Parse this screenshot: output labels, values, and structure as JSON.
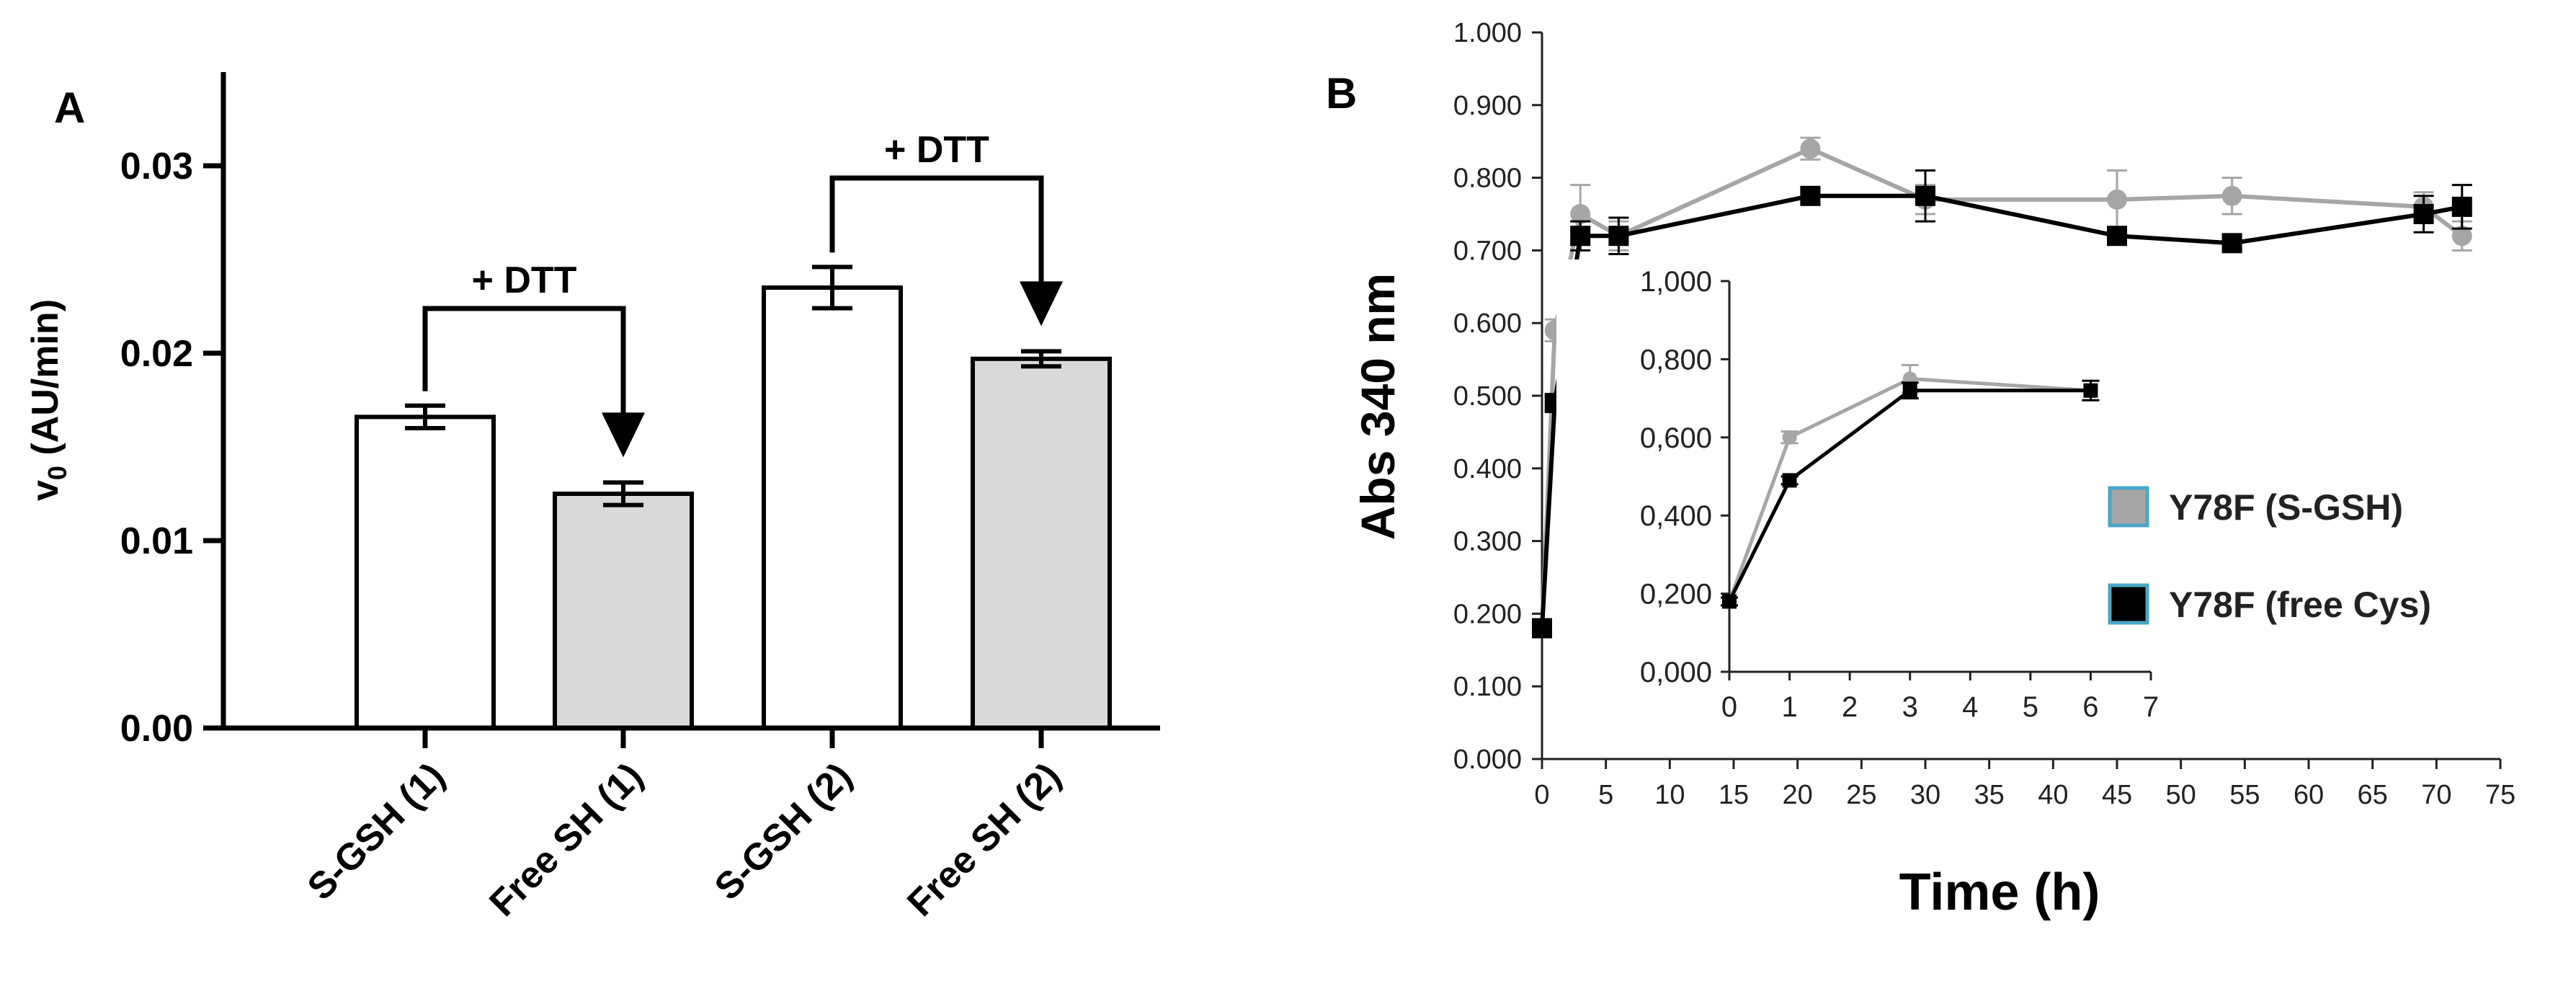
{
  "chart_data": [
    {
      "panel": "A",
      "type": "bar",
      "ylabel": "v0 (AU/min)",
      "ylabel_base": "v",
      "ylabel_sub": "0",
      "ylabel_rest": " (AU/min)",
      "ylim": [
        0,
        0.035
      ],
      "yticks": [
        0.0,
        0.01,
        0.02,
        0.03
      ],
      "yticklabels": [
        "0.00",
        "0.01",
        "0.02",
        "0.03"
      ],
      "categories": [
        "S-GSH (1)",
        "Free SH (1)",
        "S-GSH (2)",
        "Free SH (2)"
      ],
      "values": [
        0.0166,
        0.0125,
        0.0235,
        0.0197
      ],
      "errors": [
        0.0006,
        0.0006,
        0.0011,
        0.0004
      ],
      "bar_colors": [
        "#ffffff",
        "#d9d9d9",
        "#ffffff",
        "#d9d9d9"
      ],
      "annotations": [
        {
          "text": "+ DTT",
          "from": 0,
          "to": 1
        },
        {
          "text": "+ DTT",
          "from": 2,
          "to": 3
        }
      ]
    },
    {
      "panel": "B",
      "type": "line",
      "xlabel": "Time (h)",
      "ylabel": "Abs  340 nm",
      "xlim": [
        0,
        75
      ],
      "ylim": [
        0,
        1
      ],
      "xticks": [
        0,
        5,
        10,
        15,
        20,
        25,
        30,
        35,
        40,
        45,
        50,
        55,
        60,
        65,
        70,
        75
      ],
      "yticks": [
        0.0,
        0.1,
        0.2,
        0.3,
        0.4,
        0.5,
        0.6,
        0.7,
        0.8,
        0.9,
        1.0
      ],
      "yticklabels": [
        "0.000",
        "0.100",
        "0.200",
        "0.300",
        "0.400",
        "0.500",
        "0.600",
        "0.700",
        "0.800",
        "0.900",
        "1.000"
      ],
      "series": [
        {
          "name": "Y78F (S-GSH)",
          "color": "#a6a6a6",
          "marker": "circle",
          "x": [
            0,
            1,
            3,
            6,
            21,
            30,
            45,
            54,
            69,
            72
          ],
          "y": [
            0.18,
            0.59,
            0.75,
            0.72,
            0.84,
            0.77,
            0.77,
            0.775,
            0.76,
            0.72
          ],
          "err": [
            0.01,
            0.015,
            0.04,
            0.02,
            0.015,
            0.02,
            0.04,
            0.025,
            0.02,
            0.02
          ]
        },
        {
          "name": "Y78F (free Cys)",
          "color": "#000000",
          "marker": "square",
          "x": [
            0,
            1,
            3,
            6,
            21,
            30,
            45,
            54,
            69,
            72
          ],
          "y": [
            0.18,
            0.49,
            0.72,
            0.72,
            0.775,
            0.775,
            0.72,
            0.71,
            0.75,
            0.76
          ],
          "err": [
            0.01,
            0.01,
            0.02,
            0.025,
            0.01,
            0.035,
            0.01,
            0.01,
            0.025,
            0.03
          ]
        }
      ],
      "legend_placement": "right",
      "inset": {
        "xlim": [
          0,
          7
        ],
        "ylim": [
          0,
          1
        ],
        "xticks": [
          0,
          1,
          2,
          3,
          4,
          5,
          6,
          7
        ],
        "yticks": [
          0.0,
          0.2,
          0.4,
          0.6,
          0.8,
          1.0
        ],
        "yticklabels": [
          "0,000",
          "0,200",
          "0,400",
          "0,600",
          "0,800",
          "1,000"
        ],
        "series": [
          {
            "name": "Y78F (S-GSH)",
            "color": "#a6a6a6",
            "x": [
              0,
              1,
              3,
              6
            ],
            "y": [
              0.18,
              0.6,
              0.75,
              0.72
            ],
            "err": [
              0.01,
              0.015,
              0.035,
              0.025
            ]
          },
          {
            "name": "Y78F (free Cys)",
            "color": "#000000",
            "x": [
              0,
              1,
              3,
              6
            ],
            "y": [
              0.18,
              0.49,
              0.72,
              0.72
            ],
            "err": [
              0.01,
              0.01,
              0.02,
              0.025
            ]
          }
        ]
      }
    }
  ]
}
